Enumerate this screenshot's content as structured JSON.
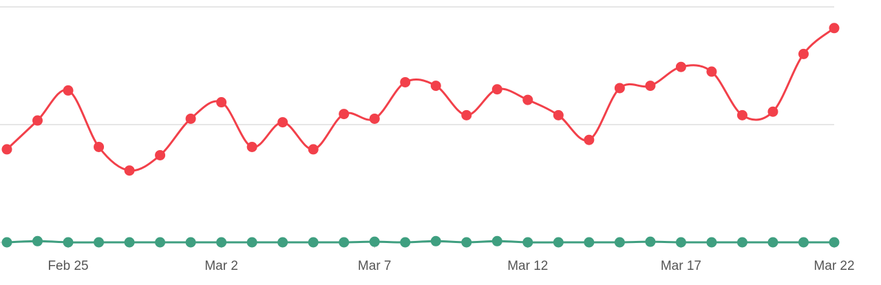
{
  "chart_data": {
    "type": "line",
    "categories": [
      null,
      null,
      "Feb 25",
      null,
      null,
      null,
      null,
      "Mar 2",
      null,
      null,
      null,
      null,
      "Mar 7",
      null,
      null,
      null,
      null,
      "Mar 12",
      null,
      null,
      null,
      null,
      "Mar 17",
      null,
      null,
      null,
      null,
      "Mar 22"
    ],
    "series": [
      {
        "color": "#f2404a",
        "values": [
          79,
          103.5,
          129,
          81,
          61,
          74,
          105,
          119,
          81,
          102,
          79,
          109,
          105,
          136,
          133,
          108,
          130,
          121,
          108,
          87,
          131,
          133,
          149,
          145,
          108,
          111,
          160,
          182
        ]
      },
      {
        "color": "#3f9f80",
        "values": [
          0,
          1,
          0,
          0,
          0,
          0,
          0,
          0,
          0,
          0,
          0,
          0,
          0.5,
          0,
          1,
          0,
          1,
          0,
          0,
          0,
          0,
          0.5,
          0,
          0,
          0,
          0,
          0,
          0
        ]
      }
    ],
    "ylim": [
      0,
      200
    ],
    "yticks": [
      0,
      100,
      200
    ],
    "grid": true
  }
}
